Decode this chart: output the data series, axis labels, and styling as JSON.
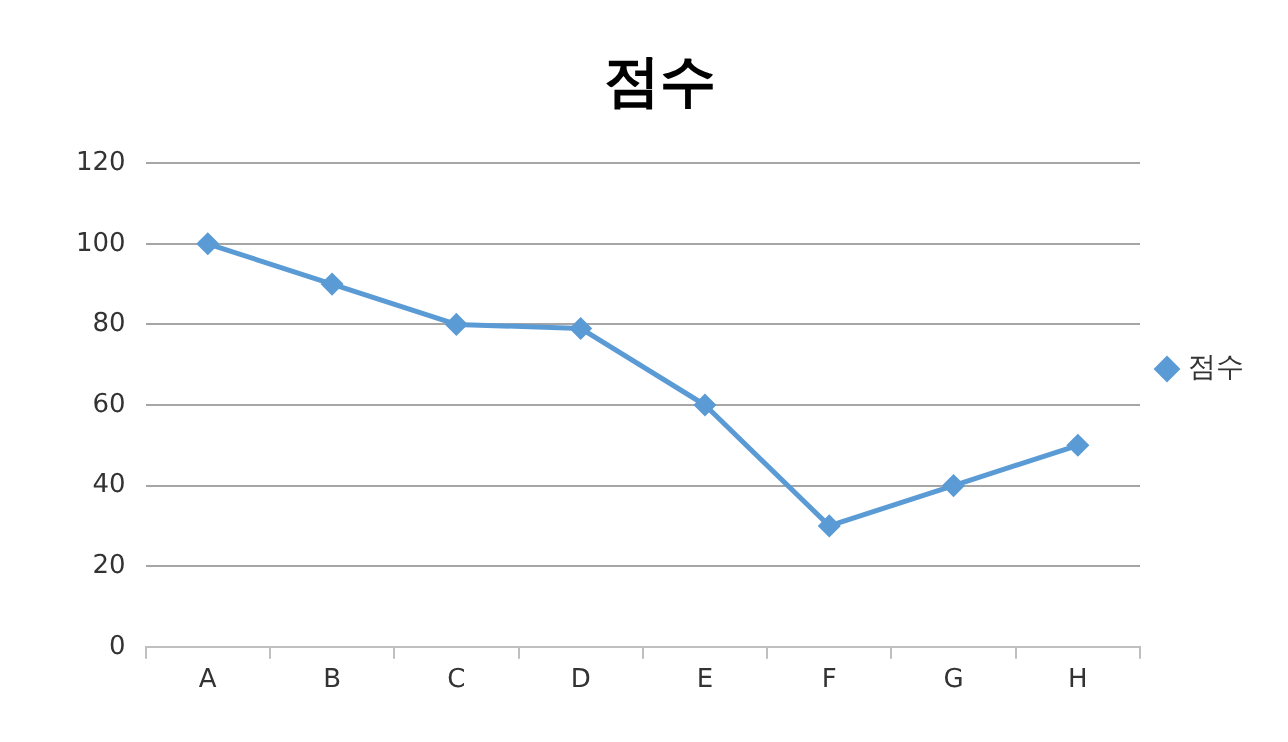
{
  "chart_data": {
    "type": "line",
    "title": "점수",
    "categories": [
      "A",
      "B",
      "C",
      "D",
      "E",
      "F",
      "G",
      "H"
    ],
    "series": [
      {
        "name": "점수",
        "color": "#5b9bd5",
        "values": [
          100,
          90,
          80,
          79,
          60,
          30,
          40,
          50
        ]
      }
    ],
    "ylim": [
      0,
      120
    ],
    "yticks": [
      0,
      20,
      40,
      60,
      80,
      100,
      120
    ],
    "grid": "y",
    "legend": "right",
    "marker": "diamond",
    "line_style": "solid"
  }
}
